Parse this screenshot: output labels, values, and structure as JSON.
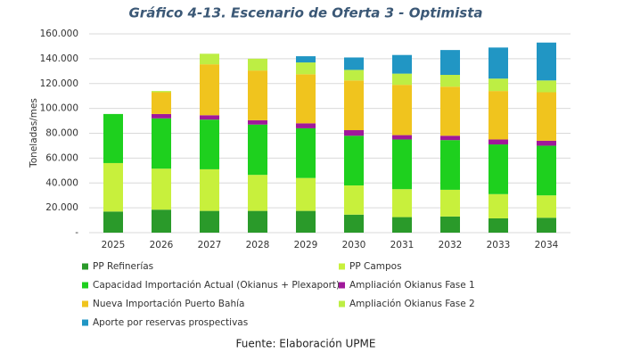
{
  "chart_data": {
    "type": "stacked_bar",
    "title": "Gráfico 4-13. Escenario de Oferta 3 - Optimista",
    "y_label": "Toneladas/mes",
    "source": "Fuente: Elaboración UPME",
    "categories": [
      "2025",
      "2026",
      "2027",
      "2028",
      "2029",
      "2030",
      "2031",
      "2032",
      "2033",
      "2034"
    ],
    "ylim": [
      0,
      160000
    ],
    "yticks": [
      {
        "value": 0,
        "label": "-"
      },
      {
        "value": 20000,
        "label": "20.000"
      },
      {
        "value": 40000,
        "label": "40.000"
      },
      {
        "value": 60000,
        "label": "60.000"
      },
      {
        "value": 80000,
        "label": "80.000"
      },
      {
        "value": 100000,
        "label": "100.000"
      },
      {
        "value": 120000,
        "label": "120.000"
      },
      {
        "value": 140000,
        "label": "140.000"
      },
      {
        "value": 160000,
        "label": "160.000"
      }
    ],
    "grid": true,
    "series": [
      {
        "name": "PP Refinerías",
        "color": "#2a9a2a",
        "values": [
          17000,
          18500,
          17500,
          17500,
          17500,
          14500,
          12500,
          13000,
          11500,
          12000
        ]
      },
      {
        "name": "PP Campos",
        "color": "#c8f03c",
        "values": [
          39000,
          33000,
          33500,
          29000,
          26500,
          23500,
          22500,
          21500,
          19500,
          18000
        ]
      },
      {
        "name": "Capacidad Importación Actual (Okianus + Plexaport)",
        "color": "#1ed01e",
        "values": [
          39500,
          40500,
          40000,
          40500,
          40000,
          40000,
          40000,
          40000,
          40000,
          40000
        ]
      },
      {
        "name": "Ampliación Okianus Fase 1",
        "color": "#a0189a",
        "values": [
          0,
          3500,
          3500,
          3500,
          4000,
          4500,
          3500,
          3500,
          4000,
          4000
        ]
      },
      {
        "name": "Nueva Importación Puerto Bahía",
        "color": "#f0c41e",
        "values": [
          0,
          17500,
          41000,
          40000,
          39500,
          40000,
          40500,
          39500,
          39000,
          39000
        ]
      },
      {
        "name": "Ampliación Okianus Fase 2",
        "color": "#bdee44",
        "values": [
          0,
          1000,
          8500,
          9500,
          9500,
          8500,
          9000,
          9500,
          10000,
          9500
        ]
      },
      {
        "name": "Aporte por reservas prospectivas",
        "color": "#2196c4",
        "values": [
          0,
          0,
          0,
          0,
          5000,
          10000,
          15000,
          20000,
          25000,
          30500
        ]
      }
    ]
  }
}
